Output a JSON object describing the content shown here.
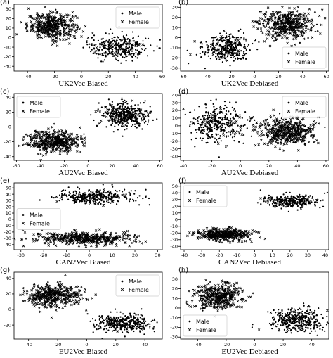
{
  "chart_data": [
    {
      "letter": "(a)",
      "caption": "UK2Vec Biased",
      "type": "scatter",
      "xlim": [
        -50,
        60
      ],
      "ylim": [
        -35,
        35
      ],
      "xticks": [
        -40,
        -20,
        0,
        20,
        40,
        60
      ],
      "yticks": [
        -30,
        -20,
        -10,
        0,
        10,
        20,
        30
      ],
      "legend_position": "top-right",
      "legend": [
        "Male",
        "Female"
      ],
      "clusters": [
        {
          "series": "Female",
          "cx": -22,
          "cy": 12,
          "sx": 12,
          "sy": 9,
          "n": 360
        },
        {
          "series": "Male",
          "cx": -22,
          "cy": 12,
          "sx": 12,
          "sy": 9,
          "n": 60
        },
        {
          "series": "Male",
          "cx": 28,
          "cy": -10,
          "sx": 15,
          "sy": 9,
          "n": 320
        },
        {
          "series": "Female",
          "cx": 28,
          "cy": -10,
          "sx": 15,
          "sy": 9,
          "n": 20
        }
      ]
    },
    {
      "letter": "(b)",
      "caption": "UK2Vec Debiased",
      "type": "scatter",
      "xlim": [
        -62,
        62
      ],
      "ylim": [
        -33,
        33
      ],
      "xticks": [
        -60,
        -40,
        -20,
        0,
        20,
        40,
        60
      ],
      "yticks": [
        -30,
        -20,
        -10,
        0,
        10,
        20,
        30
      ],
      "legend_position": "lower-right",
      "legend": [
        "Male",
        "Female"
      ],
      "clusters": [
        {
          "series": "Male",
          "cx": -24,
          "cy": -10,
          "sx": 13,
          "sy": 9,
          "n": 320
        },
        {
          "series": "Female",
          "cx": -24,
          "cy": -10,
          "sx": 13,
          "sy": 9,
          "n": 30
        },
        {
          "series": "Female",
          "cx": 26,
          "cy": 13,
          "sx": 15,
          "sy": 9,
          "n": 380
        },
        {
          "series": "Male",
          "cx": 26,
          "cy": 13,
          "sx": 15,
          "sy": 9,
          "n": 60
        }
      ]
    },
    {
      "letter": "(c)",
      "caption": "AU2Vec Biased",
      "type": "scatter",
      "xlim": [
        -62,
        62
      ],
      "ylim": [
        -45,
        45
      ],
      "xticks": [
        -60,
        -40,
        -20,
        0,
        20,
        40,
        60
      ],
      "yticks": [
        -40,
        -20,
        0,
        20,
        40
      ],
      "legend_position": "top-left",
      "legend": [
        "Male",
        "Female"
      ],
      "clusters": [
        {
          "series": "Female",
          "cx": -28,
          "cy": -20,
          "sx": 15,
          "sy": 10,
          "n": 380
        },
        {
          "series": "Male",
          "cx": -28,
          "cy": -20,
          "sx": 15,
          "sy": 10,
          "n": 40
        },
        {
          "series": "Male",
          "cx": 30,
          "cy": 16,
          "sx": 13,
          "sy": 11,
          "n": 320
        },
        {
          "series": "Female",
          "cx": 30,
          "cy": 16,
          "sx": 13,
          "sy": 11,
          "n": 80
        }
      ]
    },
    {
      "letter": "(d)",
      "caption": "AU2Vec Debiased",
      "type": "scatter",
      "xlim": [
        -42,
        62
      ],
      "ylim": [
        -45,
        42
      ],
      "xticks": [
        -40,
        -20,
        0,
        20,
        40,
        60
      ],
      "yticks": [
        -40,
        -30,
        -20,
        -10,
        0,
        10,
        20,
        30,
        40
      ],
      "legend_position": "top-right",
      "legend": [
        "Male",
        "Female"
      ],
      "clusters": [
        {
          "series": "Male",
          "cx": -16,
          "cy": 2,
          "sx": 13,
          "sy": 17,
          "n": 300
        },
        {
          "series": "Female",
          "cx": -16,
          "cy": 2,
          "sx": 13,
          "sy": 17,
          "n": 50
        },
        {
          "series": "Female",
          "cx": 32,
          "cy": -8,
          "sx": 13,
          "sy": 12,
          "n": 360
        },
        {
          "series": "Male",
          "cx": 32,
          "cy": -8,
          "sx": 13,
          "sy": 12,
          "n": 90
        }
      ]
    },
    {
      "letter": "(e)",
      "caption": "CAN2Vec Biased",
      "type": "scatter",
      "xlim": [
        -33,
        32
      ],
      "ylim": [
        -48,
        58
      ],
      "xticks": [
        -30,
        -20,
        -10,
        0,
        10,
        20,
        30
      ],
      "yticks": [
        -40,
        -30,
        -20,
        -10,
        0,
        10,
        20,
        30,
        40,
        50
      ],
      "legend_position": "mid-left",
      "legend": [
        "Male",
        "Female"
      ],
      "clusters": [
        {
          "series": "Male",
          "cx": 2,
          "cy": 36,
          "sx": 11,
          "sy": 8,
          "n": 340
        },
        {
          "series": "Female",
          "cx": 2,
          "cy": 36,
          "sx": 11,
          "sy": 8,
          "n": 20
        },
        {
          "series": "Female",
          "cx": -3,
          "cy": -30,
          "sx": 14,
          "sy": 7,
          "n": 400
        },
        {
          "series": "Male",
          "cx": -3,
          "cy": -30,
          "sx": 14,
          "sy": 7,
          "n": 30
        }
      ]
    },
    {
      "letter": "(f)",
      "caption": "CAN2Vec Debiased",
      "type": "scatter",
      "xlim": [
        -42,
        42
      ],
      "ylim": [
        -45,
        55
      ],
      "xticks": [
        -40,
        -30,
        -20,
        -10,
        0,
        10,
        20,
        30,
        40
      ],
      "yticks": [
        -40,
        -30,
        -20,
        -10,
        0,
        10,
        20,
        30,
        40,
        50
      ],
      "legend_position": "top-left",
      "legend": [
        "Male",
        "Female"
      ],
      "clusters": [
        {
          "series": "Male",
          "cx": 20,
          "cy": 28,
          "sx": 10,
          "sy": 6,
          "n": 300
        },
        {
          "series": "Female",
          "cx": 20,
          "cy": 28,
          "sx": 10,
          "sy": 6,
          "n": 20
        },
        {
          "series": "Female",
          "cx": -18,
          "cy": -22,
          "sx": 10,
          "sy": 6,
          "n": 360
        },
        {
          "series": "Male",
          "cx": -18,
          "cy": -22,
          "sx": 10,
          "sy": 6,
          "n": 30
        }
      ]
    },
    {
      "letter": "(g)",
      "caption": "EU2Vec Biased",
      "type": "scatter",
      "xlim": [
        -50,
        52
      ],
      "ylim": [
        -38,
        48
      ],
      "xticks": [
        -40,
        -20,
        0,
        20,
        40
      ],
      "yticks": [
        -20,
        0,
        20,
        40
      ],
      "legend_position": "top-right",
      "legend": [
        "Male",
        "Female"
      ],
      "clusters": [
        {
          "series": "Female",
          "cx": -23,
          "cy": 18,
          "sx": 12,
          "sy": 9,
          "n": 380
        },
        {
          "series": "Male",
          "cx": -23,
          "cy": 18,
          "sx": 12,
          "sy": 9,
          "n": 30
        },
        {
          "series": "Male",
          "cx": 25,
          "cy": -18,
          "sx": 13,
          "sy": 8,
          "n": 340
        },
        {
          "series": "Female",
          "cx": 25,
          "cy": -18,
          "sx": 13,
          "sy": 8,
          "n": 20
        }
      ]
    },
    {
      "letter": "(h)",
      "caption": "EU2Vec Debiased",
      "type": "scatter",
      "xlim": [
        -52,
        52
      ],
      "ylim": [
        -32,
        37
      ],
      "xticks": [
        -40,
        -20,
        0,
        20,
        40
      ],
      "yticks": [
        -30,
        -20,
        -10,
        0,
        10,
        20,
        30
      ],
      "legend_position": "lower-left",
      "legend": [
        "Male",
        "Female"
      ],
      "clusters": [
        {
          "series": "Female",
          "cx": -25,
          "cy": 12,
          "sx": 11,
          "sy": 9,
          "n": 360
        },
        {
          "series": "Male",
          "cx": -25,
          "cy": 12,
          "sx": 11,
          "sy": 9,
          "n": 40
        },
        {
          "series": "Male",
          "cx": 30,
          "cy": -12,
          "sx": 13,
          "sy": 9,
          "n": 340
        },
        {
          "series": "Female",
          "cx": 30,
          "cy": -12,
          "sx": 13,
          "sy": 9,
          "n": 30
        }
      ]
    }
  ]
}
